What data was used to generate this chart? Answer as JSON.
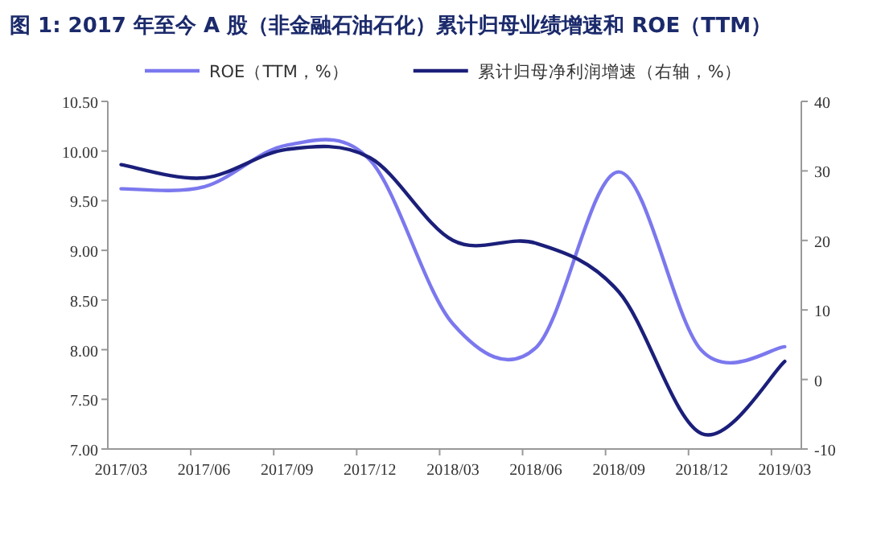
{
  "chart_data": {
    "type": "line",
    "title": "图 1: 2017 年至今 A 股（非金融石油石化）累计归母业绩增速和 ROE（TTM）",
    "categories": [
      "2017/03",
      "2017/06",
      "2017/09",
      "2017/12",
      "2018/03",
      "2018/06",
      "2018/09",
      "2018/12",
      "2019/03"
    ],
    "series": [
      {
        "name": "ROE（TTM，%）",
        "color": "#7b78ee",
        "values": [
          9.62,
          9.64,
          10.06,
          9.91,
          8.26,
          8.02,
          9.79,
          7.99,
          8.03
        ]
      },
      {
        "name": "累计归母净利润增速（右轴，%）",
        "color": "#1b1f7a",
        "axis": "y2",
        "values": [
          30.9,
          29.0,
          33.1,
          31.9,
          20.0,
          19.6,
          12.6,
          -7.8,
          2.6
        ]
      }
    ],
    "ylim": [
      7,
      10.5
    ],
    "yticks": [
      {
        "value": 7,
        "label": "7.00"
      },
      {
        "value": 7.5,
        "label": "7.50"
      },
      {
        "value": 8,
        "label": "8.00"
      },
      {
        "value": 8.5,
        "label": "8.50"
      },
      {
        "value": 9,
        "label": "9.00"
      },
      {
        "value": 9.5,
        "label": "9.50"
      },
      {
        "value": 10,
        "label": "10.00"
      },
      {
        "value": 10.5,
        "label": "10.50"
      }
    ],
    "y2lim": [
      -10,
      40
    ],
    "y2ticks": [
      -10,
      0,
      10,
      20,
      30,
      40
    ],
    "legend": "top",
    "line_style": "solid",
    "marker": "none"
  }
}
